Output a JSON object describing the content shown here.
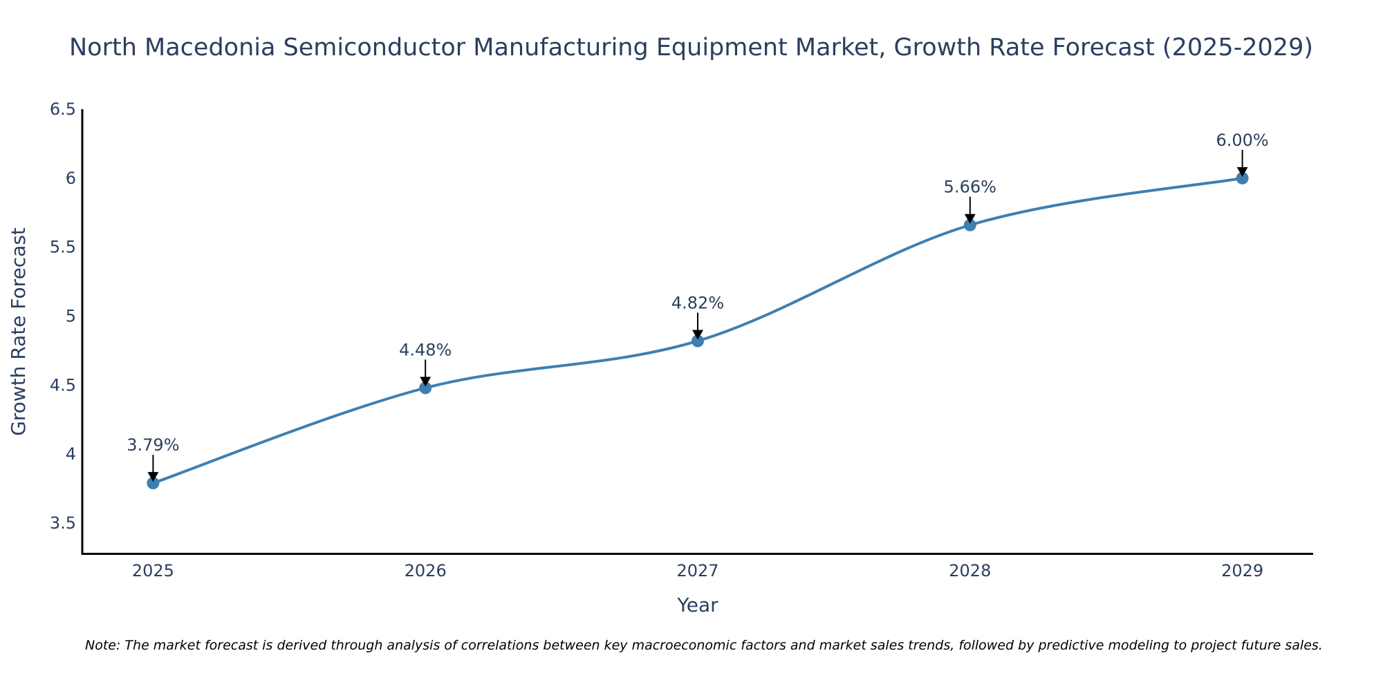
{
  "chart_data": {
    "type": "line",
    "title": "North Macedonia Semiconductor Manufacturing Equipment Market, Growth Rate Forecast (2025-2029)",
    "xlabel": "Year",
    "ylabel": "Growth Rate Forecast",
    "categories": [
      "2025",
      "2026",
      "2027",
      "2028",
      "2029"
    ],
    "series": [
      {
        "name": "Growth Rate Forecast",
        "values": [
          3.79,
          4.48,
          4.82,
          5.66,
          6.0
        ],
        "color": "#3f7fb0",
        "line_shape": "spline",
        "markers": true
      }
    ],
    "data_labels": [
      "3.79%",
      "4.48%",
      "4.82%",
      "5.66%",
      "6.00%"
    ],
    "annotation_arrows": true,
    "ylim": [
      3.28,
      6.5
    ],
    "yticks": [
      3.5,
      4,
      4.5,
      5,
      5.5,
      6,
      6.5
    ],
    "ytick_labels": [
      "3.5",
      "4",
      "4.5",
      "5",
      "5.5",
      "6",
      "6.5"
    ],
    "xlim": [
      -0.26,
      4.26
    ],
    "grid": false,
    "legend": "none",
    "note": "Note: The market forecast is derived through analysis of correlations between key macroeconomic factors and market sales trends, followed by predictive modeling to project future sales."
  }
}
